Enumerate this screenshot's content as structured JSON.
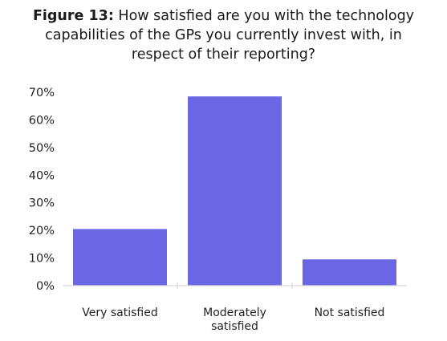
{
  "figure_label": "Figure 13:",
  "title_lines": [
    "How satisfied are you with the technology",
    "capabilities of the GPs you currently invest with, in",
    "respect of their reporting?"
  ],
  "chart_data": {
    "type": "bar",
    "title": "Figure 13: How satisfied are you with the technology capabilities of the GPs you currently invest with, in respect of their reporting?",
    "categories": [
      "Very satisfied",
      "Moderately satisfied",
      "Not satisfied"
    ],
    "category_lines": [
      [
        "Very satisfied"
      ],
      [
        "Moderately",
        "satisfied"
      ],
      [
        "Not satisfied"
      ]
    ],
    "values": [
      20.5,
      68.5,
      9.5
    ],
    "ylim": [
      0,
      70
    ],
    "yticks": [
      0,
      10,
      20,
      30,
      40,
      50,
      60,
      70
    ],
    "ytick_labels": [
      "0%",
      "10%",
      "20%",
      "30%",
      "40%",
      "50%",
      "60%",
      "70%"
    ],
    "xlabel": "",
    "ylabel": "",
    "grid": false,
    "legend": "none",
    "bar_color": "#6B66E4",
    "axis_color": "#d9d9d9"
  }
}
